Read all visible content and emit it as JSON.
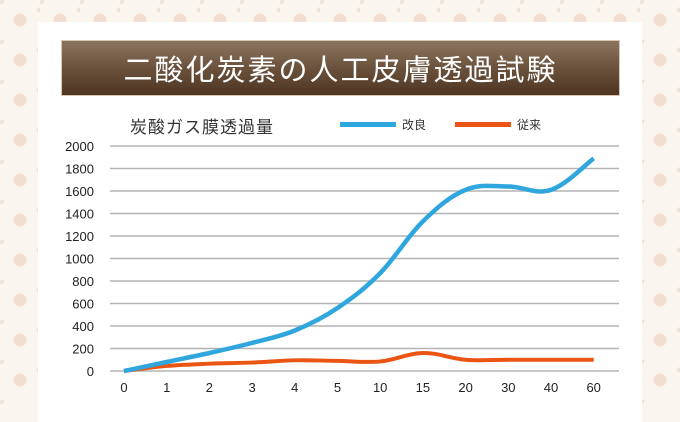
{
  "header": {
    "title": "二酸化炭素の人工皮膚透過試験"
  },
  "chart_data": {
    "type": "line",
    "title": "炭酸ガス膜透過量",
    "xlabel": "",
    "ylabel": "",
    "categories": [
      "0",
      "1",
      "2",
      "3",
      "4",
      "5",
      "10",
      "15",
      "20",
      "30",
      "40",
      "60"
    ],
    "series": [
      {
        "name": "改良",
        "color": "#2fa6de",
        "values": [
          0,
          80,
          160,
          250,
          360,
          560,
          870,
          1330,
          1610,
          1640,
          1610,
          1890
        ]
      },
      {
        "name": "従来",
        "color": "#ea5514",
        "values": [
          0,
          45,
          65,
          75,
          95,
          90,
          85,
          160,
          100,
          100,
          100,
          100
        ]
      }
    ],
    "yticks": [
      0,
      200,
      400,
      600,
      800,
      1000,
      1200,
      1400,
      1600,
      1800,
      2000
    ],
    "ylim": [
      0,
      2000
    ],
    "grid": true,
    "legend_position": "top-right"
  },
  "legend": {
    "items": [
      {
        "label": "改良",
        "color": "#2fa6de"
      },
      {
        "label": "従来",
        "color": "#ea5514"
      }
    ]
  },
  "colors": {
    "title_bar_top": "#8c7560",
    "title_bar_bottom": "#4d3522",
    "grid": "#b4b4b4"
  }
}
